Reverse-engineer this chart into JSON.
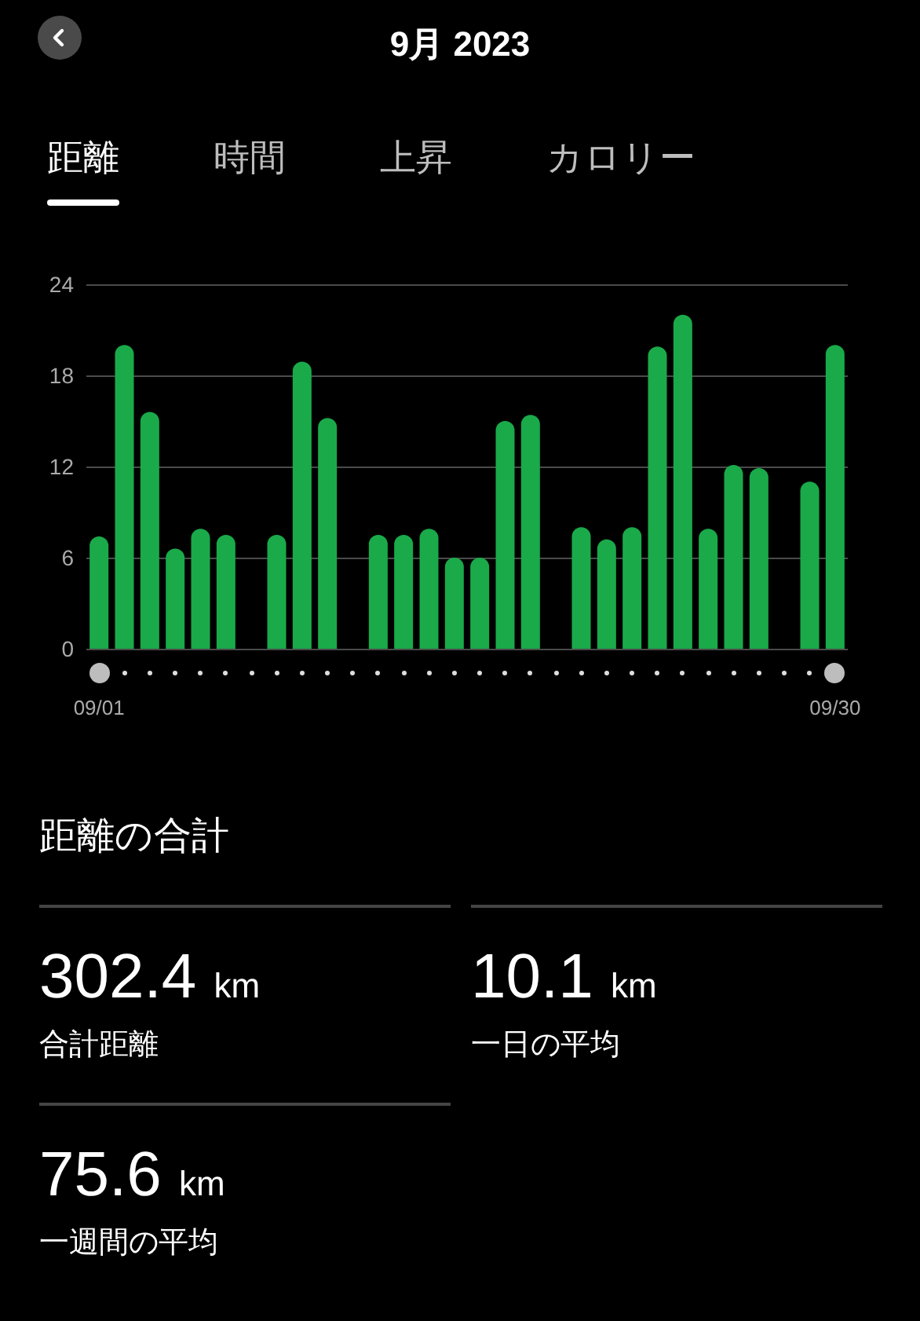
{
  "chart_data": [
    {
      "type": "bar",
      "title": "9月 2023",
      "annotations": [
        "距離",
        "時間",
        "上昇",
        "カロリー"
      ],
      "categories": [
        "09/01",
        null,
        null,
        null,
        null,
        null,
        null,
        null,
        null,
        null,
        null,
        null,
        null,
        null,
        null,
        null,
        null,
        null,
        null,
        null,
        null,
        null,
        null,
        null,
        null,
        null,
        null,
        null,
        null,
        "09/30"
      ],
      "values": [
        7.4,
        20.0,
        15.6,
        6.6,
        7.9,
        7.5,
        null,
        7.5,
        18.9,
        15.2,
        null,
        7.5,
        7.5,
        7.9,
        6.0,
        6.0,
        15.0,
        15.4,
        null,
        8.0,
        7.2,
        8.0,
        19.9,
        22.0,
        7.9,
        12.1,
        11.9,
        null,
        11.0,
        20.0
      ],
      "color": "#1aaa4a",
      "ylim": [
        0,
        24
      ],
      "yticks": [
        0,
        6,
        12,
        18,
        24
      ],
      "grid": "y"
    },
    {
      "type": "other",
      "title": "距離の合計",
      "annotations": [
        "302.4 km",
        "合計距離",
        "10.1 km",
        "一日の平均",
        "75.6 km",
        "一週間の平均"
      ]
    }
  ]
}
